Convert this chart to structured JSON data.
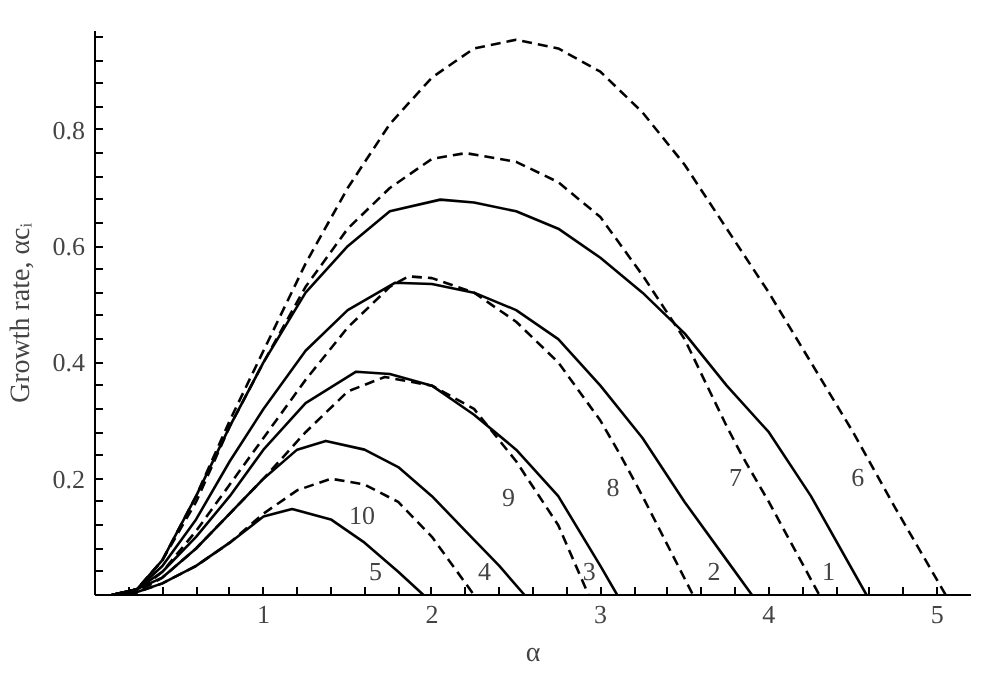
{
  "chart_data": {
    "type": "line",
    "xlabel": "α",
    "ylabel": "Growth rate, αcᵢ",
    "xlim": [
      0,
      5.2
    ],
    "ylim": [
      0,
      0.97
    ],
    "xticks": [
      {
        "value": 0.2,
        "label": null
      },
      {
        "value": 0.4,
        "label": null
      },
      {
        "value": 0.6,
        "label": null
      },
      {
        "value": 0.8,
        "label": null
      },
      1,
      {
        "value": 1.2,
        "label": null
      },
      {
        "value": 1.4,
        "label": null
      },
      {
        "value": 1.6,
        "label": null
      },
      {
        "value": 1.8,
        "label": null
      },
      2,
      {
        "value": 2.2,
        "label": null
      },
      {
        "value": 2.4,
        "label": null
      },
      {
        "value": 2.6,
        "label": null
      },
      {
        "value": 2.8,
        "label": null
      },
      3,
      {
        "value": 3.2,
        "label": null
      },
      {
        "value": 3.4,
        "label": null
      },
      {
        "value": 3.6,
        "label": null
      },
      {
        "value": 3.8,
        "label": null
      },
      4,
      {
        "value": 4.2,
        "label": null
      },
      {
        "value": 4.4,
        "label": null
      },
      {
        "value": 4.6,
        "label": null
      },
      {
        "value": 4.8,
        "label": null
      },
      5
    ],
    "yticks": [
      {
        "value": 0.04,
        "label": null
      },
      {
        "value": 0.08,
        "label": null
      },
      {
        "value": 0.12,
        "label": null
      },
      {
        "value": 0.16,
        "label": null
      },
      0.2,
      {
        "value": 0.24,
        "label": null
      },
      {
        "value": 0.28,
        "label": null
      },
      {
        "value": 0.32,
        "label": null
      },
      {
        "value": 0.36,
        "label": null
      },
      0.4,
      {
        "value": 0.44,
        "label": null
      },
      {
        "value": 0.48,
        "label": null
      },
      {
        "value": 0.52,
        "label": null
      },
      {
        "value": 0.56,
        "label": null
      },
      0.6,
      {
        "value": 0.64,
        "label": null
      },
      {
        "value": 0.68,
        "label": null
      },
      {
        "value": 0.72,
        "label": null
      },
      {
        "value": 0.76,
        "label": null
      },
      0.8,
      {
        "value": 0.84,
        "label": null
      },
      {
        "value": 0.88,
        "label": null
      },
      {
        "value": 0.92,
        "label": null
      },
      {
        "value": 0.96,
        "label": null
      }
    ],
    "grid": false,
    "marker": "none",
    "series": [
      {
        "name": "1",
        "color": "#000000",
        "line_style": "solid",
        "x": [
          0.1,
          0.25,
          0.4,
          0.6,
          0.8,
          1.0,
          1.25,
          1.5,
          1.75,
          2.05,
          2.25,
          2.5,
          2.75,
          3.0,
          3.25,
          3.5,
          3.75,
          4.0,
          4.25,
          4.58
        ],
        "values": [
          0,
          0.01,
          0.06,
          0.17,
          0.29,
          0.4,
          0.52,
          0.6,
          0.66,
          0.68,
          0.675,
          0.66,
          0.63,
          0.58,
          0.52,
          0.45,
          0.36,
          0.28,
          0.17,
          0
        ]
      },
      {
        "name": "2",
        "color": "#000000",
        "line_style": "solid",
        "x": [
          0.1,
          0.25,
          0.4,
          0.6,
          0.8,
          1.0,
          1.25,
          1.5,
          1.78,
          2.0,
          2.25,
          2.5,
          2.75,
          3.0,
          3.25,
          3.5,
          3.75,
          3.9
        ],
        "values": [
          0,
          0.01,
          0.05,
          0.13,
          0.23,
          0.32,
          0.42,
          0.49,
          0.537,
          0.535,
          0.52,
          0.49,
          0.44,
          0.36,
          0.27,
          0.16,
          0.06,
          0
        ]
      },
      {
        "name": "3",
        "color": "#000000",
        "line_style": "solid",
        "x": [
          0.1,
          0.25,
          0.4,
          0.6,
          0.8,
          1.0,
          1.25,
          1.55,
          1.75,
          2.0,
          2.25,
          2.5,
          2.75,
          3.0,
          3.1
        ],
        "values": [
          0,
          0.01,
          0.04,
          0.1,
          0.17,
          0.25,
          0.33,
          0.384,
          0.38,
          0.36,
          0.31,
          0.25,
          0.17,
          0.05,
          0
        ]
      },
      {
        "name": "4",
        "color": "#000000",
        "line_style": "solid",
        "x": [
          0.1,
          0.25,
          0.4,
          0.6,
          0.8,
          1.0,
          1.2,
          1.37,
          1.6,
          1.8,
          2.0,
          2.2,
          2.4,
          2.55
        ],
        "values": [
          0,
          0.01,
          0.03,
          0.08,
          0.14,
          0.2,
          0.25,
          0.265,
          0.25,
          0.22,
          0.17,
          0.11,
          0.05,
          0
        ]
      },
      {
        "name": "5",
        "color": "#000000",
        "line_style": "solid",
        "x": [
          0.1,
          0.25,
          0.4,
          0.6,
          0.8,
          1.0,
          1.17,
          1.4,
          1.6,
          1.8,
          1.95
        ],
        "values": [
          0,
          0.005,
          0.02,
          0.05,
          0.09,
          0.135,
          0.148,
          0.13,
          0.09,
          0.04,
          0
        ]
      },
      {
        "name": "6",
        "color": "#000000",
        "line_style": "dashed",
        "x": [
          0.1,
          0.25,
          0.4,
          0.6,
          0.8,
          1.0,
          1.25,
          1.5,
          1.75,
          2.0,
          2.25,
          2.5,
          2.75,
          3.0,
          3.25,
          3.5,
          3.75,
          4.0,
          4.25,
          4.5,
          4.75,
          5.05
        ],
        "values": [
          0,
          0.01,
          0.06,
          0.17,
          0.3,
          0.42,
          0.57,
          0.7,
          0.81,
          0.89,
          0.94,
          0.955,
          0.94,
          0.9,
          0.83,
          0.74,
          0.63,
          0.52,
          0.4,
          0.28,
          0.15,
          0
        ]
      },
      {
        "name": "7",
        "color": "#000000",
        "line_style": "dashed",
        "x": [
          0.1,
          0.25,
          0.4,
          0.6,
          0.8,
          1.0,
          1.25,
          1.5,
          1.75,
          2.0,
          2.2,
          2.5,
          2.75,
          3.0,
          3.25,
          3.5,
          3.75,
          3.84,
          4.0,
          4.3
        ],
        "values": [
          0,
          0.01,
          0.06,
          0.16,
          0.29,
          0.4,
          0.53,
          0.63,
          0.7,
          0.75,
          0.76,
          0.745,
          0.71,
          0.65,
          0.55,
          0.44,
          0.29,
          0.24,
          0.16,
          0
        ]
      },
      {
        "name": "8",
        "color": "#000000",
        "line_style": "dashed",
        "x": [
          0.1,
          0.25,
          0.4,
          0.6,
          0.8,
          1.0,
          1.25,
          1.5,
          1.75,
          1.86,
          2.0,
          2.25,
          2.5,
          2.75,
          3.0,
          3.12,
          3.25,
          3.55
        ],
        "values": [
          0,
          0.005,
          0.04,
          0.11,
          0.19,
          0.27,
          0.37,
          0.46,
          0.53,
          0.548,
          0.545,
          0.52,
          0.47,
          0.4,
          0.3,
          0.24,
          0.17,
          0
        ]
      },
      {
        "name": "9",
        "color": "#000000",
        "line_style": "dashed",
        "x": [
          0.1,
          0.25,
          0.4,
          0.6,
          0.8,
          1.0,
          1.25,
          1.5,
          1.72,
          2.0,
          2.25,
          2.5,
          2.75,
          2.93
        ],
        "values": [
          0,
          0.005,
          0.03,
          0.08,
          0.14,
          0.2,
          0.28,
          0.35,
          0.375,
          0.36,
          0.32,
          0.23,
          0.12,
          0
        ]
      },
      {
        "name": "10",
        "color": "#000000",
        "line_style": "dashed",
        "x": [
          0.1,
          0.25,
          0.4,
          0.6,
          0.8,
          1.0,
          1.2,
          1.4,
          1.6,
          1.8,
          2.0,
          2.25
        ],
        "values": [
          0,
          0.005,
          0.02,
          0.05,
          0.09,
          0.14,
          0.18,
          0.2,
          0.19,
          0.16,
          0.1,
          0
        ]
      }
    ]
  }
}
